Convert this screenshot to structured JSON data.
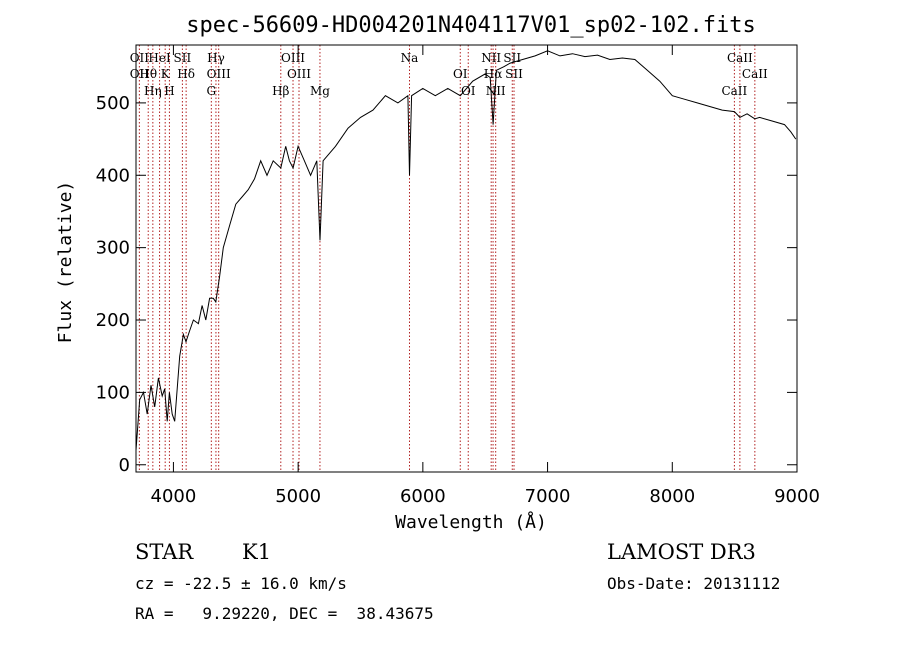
{
  "chart_data": {
    "type": "line",
    "title": "spec-56609-HD004201N404117V01_sp02-102.fits",
    "xlabel": "Wavelength (Å)",
    "ylabel": "Flux (relative)",
    "xlim": [
      3700,
      9000
    ],
    "ylim": [
      -10,
      580
    ],
    "xticks": [
      4000,
      5000,
      6000,
      7000,
      8000,
      9000
    ],
    "yticks": [
      0,
      100,
      200,
      300,
      400,
      500
    ],
    "grid": false,
    "series": [
      {
        "name": "flux",
        "x": [
          3700,
          3730,
          3760,
          3790,
          3820,
          3850,
          3880,
          3910,
          3930,
          3950,
          3968,
          3990,
          4010,
          4050,
          4080,
          4101,
          4130,
          4160,
          4200,
          4230,
          4260,
          4290,
          4320,
          4340,
          4370,
          4400,
          4450,
          4500,
          4550,
          4600,
          4650,
          4700,
          4750,
          4800,
          4861,
          4900,
          4930,
          4960,
          5000,
          5050,
          5100,
          5150,
          5175,
          5200,
          5250,
          5300,
          5400,
          5500,
          5600,
          5700,
          5800,
          5880,
          5893,
          5910,
          6000,
          6100,
          6200,
          6300,
          6400,
          6500,
          6540,
          6563,
          6590,
          6650,
          6700,
          6800,
          6900,
          7000,
          7100,
          7200,
          7300,
          7400,
          7500,
          7600,
          7700,
          7800,
          7900,
          8000,
          8100,
          8200,
          8300,
          8400,
          8498,
          8542,
          8600,
          8662,
          8700,
          8800,
          8900,
          8950,
          8990
        ],
        "y": [
          20,
          90,
          100,
          70,
          110,
          80,
          120,
          95,
          105,
          60,
          100,
          70,
          60,
          150,
          180,
          170,
          185,
          200,
          195,
          220,
          200,
          230,
          230,
          225,
          260,
          300,
          330,
          360,
          370,
          380,
          395,
          420,
          400,
          420,
          410,
          440,
          420,
          410,
          440,
          420,
          400,
          420,
          310,
          420,
          430,
          440,
          465,
          480,
          490,
          510,
          500,
          510,
          400,
          510,
          520,
          510,
          520,
          510,
          530,
          540,
          535,
          470,
          545,
          550,
          555,
          560,
          565,
          572,
          565,
          568,
          564,
          566,
          560,
          562,
          560,
          545,
          530,
          510,
          505,
          500,
          495,
          490,
          488,
          480,
          485,
          478,
          480,
          475,
          470,
          460,
          450
        ]
      }
    ],
    "lines": [
      {
        "x": 3727,
        "labels": [
          "OII",
          "OII"
        ]
      },
      {
        "x": 3798,
        "labels": [
          "Hθ"
        ]
      },
      {
        "x": 3835,
        "labels": [
          "Hη"
        ]
      },
      {
        "x": 3889,
        "labels": [
          "HeI"
        ]
      },
      {
        "x": 3934,
        "labels": [
          "K"
        ]
      },
      {
        "x": 3968,
        "labels": [
          "H"
        ]
      },
      {
        "x": 4072,
        "labels": [
          "SII"
        ]
      },
      {
        "x": 4102,
        "labels": [
          "Hδ"
        ]
      },
      {
        "x": 4304,
        "labels": [
          "G"
        ]
      },
      {
        "x": 4341,
        "labels": [
          "Hγ"
        ]
      },
      {
        "x": 4363,
        "labels": [
          "OIII"
        ]
      },
      {
        "x": 4861,
        "labels": [
          "Hβ"
        ]
      },
      {
        "x": 4959,
        "labels": [
          "OIII"
        ]
      },
      {
        "x": 5007,
        "labels": [
          "OIII"
        ]
      },
      {
        "x": 5175,
        "labels": [
          "Mg"
        ]
      },
      {
        "x": 5893,
        "labels": [
          "Na"
        ]
      },
      {
        "x": 6300,
        "labels": [
          "OI"
        ]
      },
      {
        "x": 6364,
        "labels": [
          "OI"
        ]
      },
      {
        "x": 6548,
        "labels": [
          "NII"
        ]
      },
      {
        "x": 6563,
        "labels": [
          "Hα"
        ]
      },
      {
        "x": 6584,
        "labels": [
          "NII"
        ]
      },
      {
        "x": 6717,
        "labels": [
          "SII"
        ]
      },
      {
        "x": 6731,
        "labels": [
          "SII"
        ]
      },
      {
        "x": 8498,
        "labels": [
          "CaII"
        ]
      },
      {
        "x": 8542,
        "labels": [
          "CaII"
        ]
      },
      {
        "x": 8662,
        "labels": [
          "CaII"
        ]
      }
    ],
    "label_colors": {
      "spectrum": "#000000",
      "lines": "#b22222"
    }
  },
  "info": {
    "object_class": "STAR",
    "subclass": "K1",
    "survey": "LAMOST DR3",
    "redshift": "cz = -22.5 ± 16.0 km/s",
    "obs_date": "Obs-Date: 20131112",
    "coords": "RA =   9.29220, DEC =  38.43675"
  }
}
